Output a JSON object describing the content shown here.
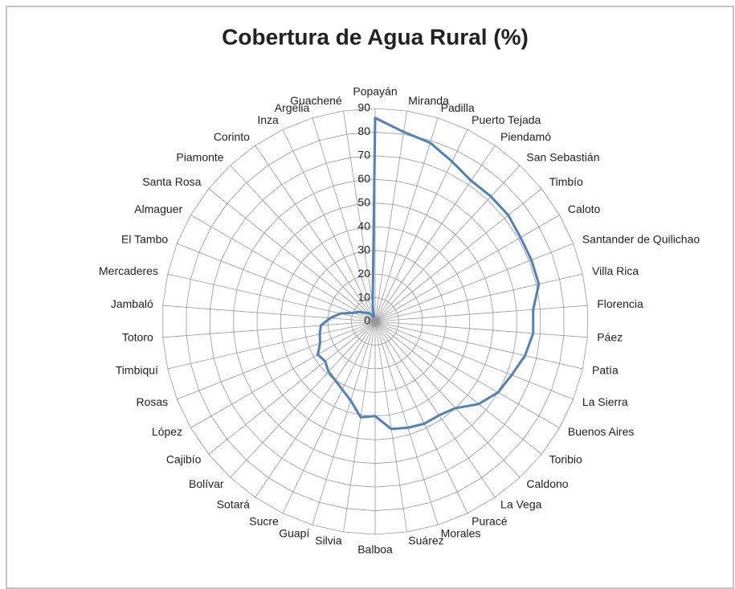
{
  "chart_data": {
    "type": "radar",
    "title": "Cobertura de Agua Rural (%)",
    "categories": [
      "Popayán",
      "Miranda",
      "Padilla",
      "Puerto Tejada",
      "Piendamó",
      "San Sebastián",
      "Timbío",
      "Caloto",
      "Santander de Quilichao",
      "Villa Rica",
      "Florencia",
      "Páez",
      "Patía",
      "La Sierra",
      "Buenos Aires",
      "Toribio",
      "Caldono",
      "La Vega",
      "Puracé",
      "Morales",
      "Suárez",
      "Balboa",
      "Silvia",
      "Guapí",
      "Sucre",
      "Sotará",
      "Bolívar",
      "Cajibío",
      "López",
      "Rosas",
      "Timbiquí",
      "Totoro",
      "Jambaló",
      "Mercaderes",
      "El Tambo",
      "Almaguer",
      "Santa Rosa",
      "Piamonte",
      "Corinto",
      "Inza",
      "Argelia",
      "Guachené"
    ],
    "series": [
      {
        "name": "Cobertura",
        "color": "#4f81bd",
        "values": [
          86,
          81,
          79,
          75,
          72,
          72,
          72,
          71,
          71,
          71,
          67,
          67,
          65,
          62,
          60,
          56,
          50,
          48,
          48,
          47,
          46,
          40,
          41,
          35,
          32,
          30,
          29,
          27,
          28,
          25,
          24,
          23,
          19,
          15,
          10,
          8,
          6,
          5,
          4,
          3,
          2,
          7
        ]
      }
    ],
    "ylim": [
      0,
      90
    ],
    "yticks": [
      0,
      10,
      20,
      30,
      40,
      50,
      60,
      70,
      80,
      90
    ],
    "grid": true
  }
}
